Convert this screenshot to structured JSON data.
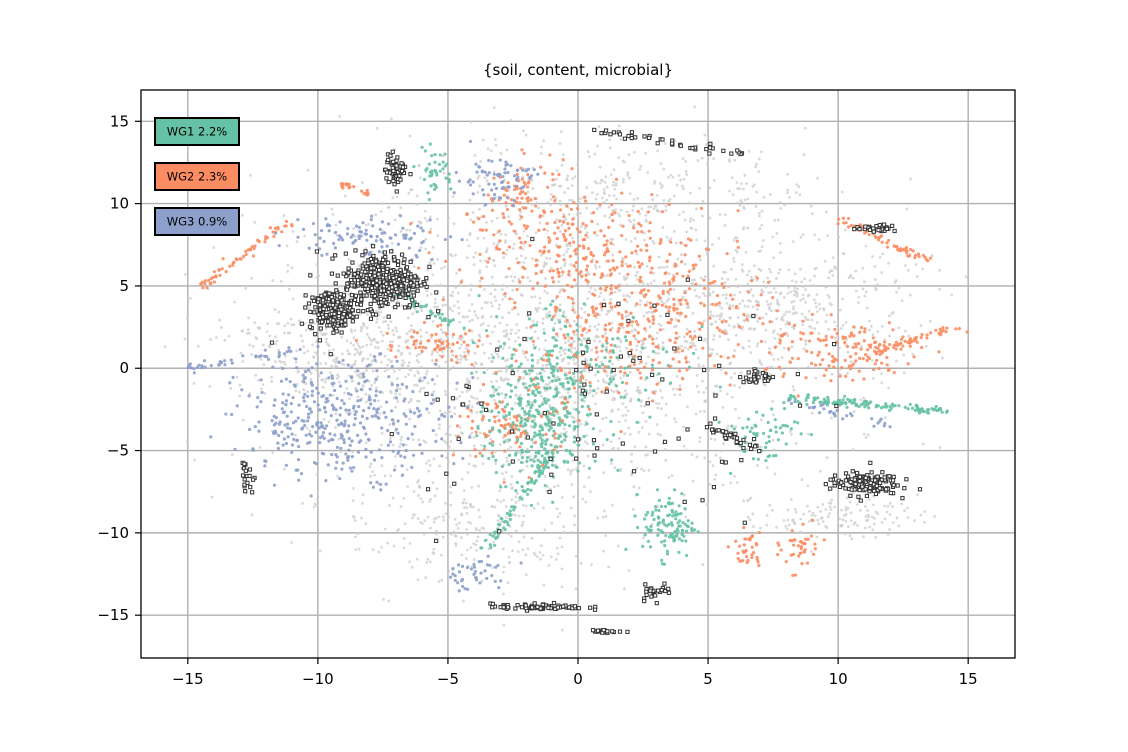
{
  "chart_data": {
    "type": "scatter",
    "title": "{soil, content, microbial}",
    "xlabel": "",
    "ylabel": "",
    "xlim": [
      -16.8,
      16.8
    ],
    "ylim": [
      -17.6,
      16.9
    ],
    "xticks": [
      -15,
      -10,
      -5,
      0,
      5,
      10,
      15
    ],
    "yticks": [
      -15,
      -10,
      -5,
      0,
      5,
      10,
      15
    ],
    "xtick_labels": [
      "−15",
      "−10",
      "−5",
      "0",
      "5",
      "10",
      "15"
    ],
    "ytick_labels": [
      "−15",
      "−10",
      "−5",
      "0",
      "5",
      "10",
      "15"
    ],
    "grid": true,
    "legend_position": "top-left",
    "legend": [
      {
        "label": "WG1 2.2%",
        "color": "#66c2a5"
      },
      {
        "label": "WG2 2.3%",
        "color": "#fc8d62"
      },
      {
        "label": "WG3 0.9%",
        "color": "#8da0cb"
      }
    ],
    "background_color": "#cccccc",
    "highlight_color": "#333333",
    "series": [
      {
        "color": "#cccccc",
        "regions": [
          {
            "cx": -1,
            "cy": 1,
            "rx": 11,
            "ry": 10,
            "n": 1900
          },
          {
            "cx": -9,
            "cy": 1,
            "rx": 4.5,
            "ry": 3,
            "n": 250
          },
          {
            "cx": 8,
            "cy": 4,
            "rx": 5,
            "ry": 3.5,
            "n": 300
          },
          {
            "cx": -4,
            "cy": -10,
            "rx": 5,
            "ry": 3,
            "n": 200
          },
          {
            "cx": 10,
            "cy": -9,
            "rx": 3,
            "ry": 1.2,
            "n": 120
          },
          {
            "cx": 2,
            "cy": 11,
            "rx": 7,
            "ry": 3,
            "n": 250
          }
        ]
      },
      {
        "color": "#66c2a5",
        "regions": [
          {
            "cx": -1.5,
            "cy": -3.5,
            "rx": 2,
            "ry": 4,
            "n": 320
          },
          {
            "cx": 3.5,
            "cy": -9.5,
            "rx": 1,
            "ry": 2,
            "n": 110
          },
          {
            "cx": 0,
            "cy": 0.5,
            "rx": 4,
            "ry": 4,
            "n": 160
          },
          {
            "cx": -5.5,
            "cy": 12,
            "rx": 0.7,
            "ry": 1.3,
            "n": 40
          },
          {
            "cx": 7,
            "cy": -4,
            "rx": 1.5,
            "ry": 2,
            "n": 60
          }
        ],
        "lines": [
          {
            "x1": 8,
            "y1": -1.8,
            "x2": 14,
            "y2": -2.6,
            "n": 130
          },
          {
            "x1": -3.5,
            "y1": -11,
            "x2": -1,
            "y2": -5,
            "n": 80
          },
          {
            "x1": -7,
            "y1": 4.5,
            "x2": -4.5,
            "y2": 2.5,
            "n": 40
          }
        ]
      },
      {
        "color": "#fc8d62",
        "regions": [
          {
            "cx": 2.5,
            "cy": 3.5,
            "rx": 5,
            "ry": 5,
            "n": 400
          },
          {
            "cx": -1,
            "cy": 8,
            "rx": 4,
            "ry": 3,
            "n": 160
          },
          {
            "cx": 10,
            "cy": 1,
            "rx": 3,
            "ry": 2,
            "n": 130
          },
          {
            "cx": -2.5,
            "cy": -3.5,
            "rx": 2,
            "ry": 2.5,
            "n": 90
          },
          {
            "cx": -2,
            "cy": 11,
            "rx": 1.5,
            "ry": 2,
            "n": 60
          },
          {
            "cx": 8.5,
            "cy": -11,
            "rx": 0.7,
            "ry": 1.3,
            "n": 40
          },
          {
            "cx": 6.5,
            "cy": -11,
            "rx": 0.6,
            "ry": 1.5,
            "n": 35
          },
          {
            "cx": -5.5,
            "cy": 1.5,
            "rx": 2,
            "ry": 1,
            "n": 60
          }
        ],
        "lines": [
          {
            "x1": -14.5,
            "y1": 5,
            "x2": -11,
            "y2": 9,
            "n": 60
          },
          {
            "x1": 10,
            "y1": 9,
            "x2": 13.5,
            "y2": 6.5,
            "n": 60
          },
          {
            "x1": 11.5,
            "y1": 1,
            "x2": 14.5,
            "y2": 2.5,
            "n": 50
          },
          {
            "x1": -9,
            "y1": 11.2,
            "x2": -8,
            "y2": 10.5,
            "n": 20
          }
        ]
      },
      {
        "color": "#8da0cb",
        "regions": [
          {
            "cx": -9,
            "cy": -3,
            "rx": 4,
            "ry": 3.5,
            "n": 380
          },
          {
            "cx": -8,
            "cy": 8,
            "rx": 3,
            "ry": 1.3,
            "n": 100
          },
          {
            "cx": -3.2,
            "cy": 11.5,
            "rx": 1.5,
            "ry": 1.5,
            "n": 70
          },
          {
            "cx": -4,
            "cy": -12.5,
            "rx": 1.5,
            "ry": 1,
            "n": 40
          }
        ],
        "lines": [
          {
            "x1": -15,
            "y1": 0,
            "x2": -11,
            "y2": 1,
            "n": 40
          },
          {
            "x1": 8,
            "y1": -2,
            "x2": 12,
            "y2": -3.5,
            "n": 30
          }
        ]
      },
      {
        "color": "#333333",
        "outlined": true,
        "regions": [
          {
            "cx": -7.5,
            "cy": 5.3,
            "rx": 1.5,
            "ry": 1.7,
            "n": 380
          },
          {
            "cx": -9.5,
            "cy": 3.5,
            "rx": 0.8,
            "ry": 1.2,
            "n": 180
          },
          {
            "cx": -7,
            "cy": 12,
            "rx": 0.4,
            "ry": 1,
            "n": 60
          },
          {
            "cx": 11,
            "cy": -7,
            "rx": 1.3,
            "ry": 0.7,
            "n": 150
          },
          {
            "cx": -1.5,
            "cy": -14.5,
            "rx": 1.8,
            "ry": 0.2,
            "n": 70
          },
          {
            "cx": 11.5,
            "cy": 8.5,
            "rx": 0.8,
            "ry": 0.2,
            "n": 30
          },
          {
            "cx": 3,
            "cy": -13.5,
            "rx": 0.6,
            "ry": 0.5,
            "n": 25
          },
          {
            "cx": 1,
            "cy": -16,
            "rx": 0.7,
            "ry": 0.1,
            "n": 20
          },
          {
            "cx": 7,
            "cy": -0.5,
            "rx": 0.8,
            "ry": 0.4,
            "n": 30
          },
          {
            "cx": 0,
            "cy": -2,
            "rx": 8,
            "ry": 8,
            "n": 90
          }
        ],
        "lines": [
          {
            "x1": 5,
            "y1": -3.5,
            "x2": 7,
            "y2": -5,
            "n": 30
          },
          {
            "x1": 0.5,
            "y1": 14.5,
            "x2": 6.5,
            "y2": 13,
            "n": 40
          },
          {
            "x1": -12.8,
            "y1": -5.5,
            "x2": -12.6,
            "y2": -7.5,
            "n": 18
          }
        ]
      }
    ]
  }
}
